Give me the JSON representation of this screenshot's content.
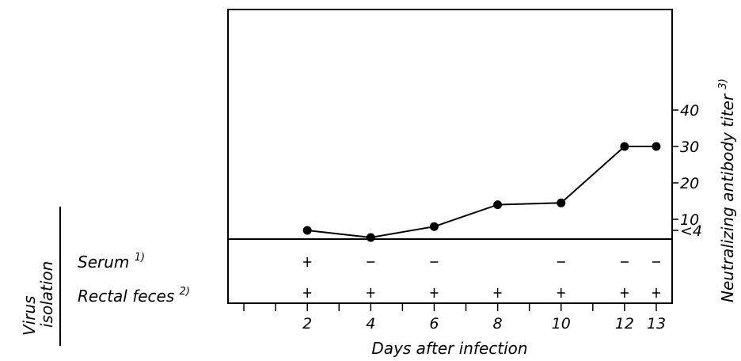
{
  "chart_data": {
    "type": "line",
    "x": [
      2,
      4,
      6,
      8,
      10,
      12,
      13
    ],
    "series": [
      {
        "values": [
          "<4",
          5,
          8,
          14,
          14.5,
          30,
          30
        ]
      }
    ],
    "xlabel": "Days after infection",
    "ylabel": "Neutralizing antibody titer",
    "ylabel_note": "3)",
    "x_ticks": [
      "2",
      "4",
      "6",
      "8",
      "10",
      "12",
      "13"
    ],
    "y_ticks": [
      "<4",
      "10",
      "20",
      "30",
      "40"
    ],
    "xlim": [
      -0.5,
      13.5
    ],
    "ylim": [
      0,
      46
    ],
    "grid": false,
    "side_label": "Virus isolation",
    "side_label_parts": [
      "Virus",
      "isolation"
    ],
    "isolation_rows": [
      {
        "label": "Serum",
        "note": "1)",
        "results": [
          "+",
          "-",
          "-",
          null,
          "-",
          "-",
          "-"
        ]
      },
      {
        "label": "Rectal feces",
        "note": "2)",
        "results": [
          "+",
          "+",
          "+",
          "+",
          "+",
          "+",
          "+"
        ]
      }
    ]
  }
}
